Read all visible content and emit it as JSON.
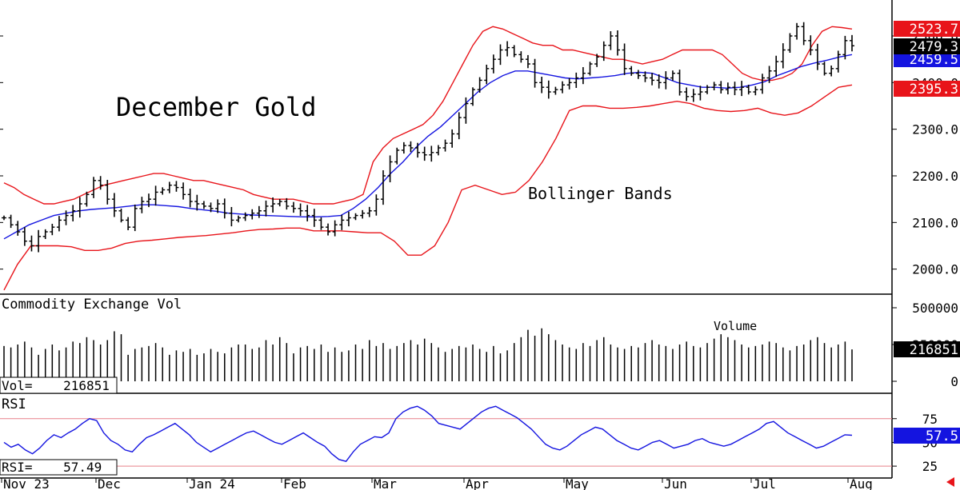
{
  "chart_data": {
    "type": "ohlc",
    "title": "December Gold",
    "annotation": "Bollinger Bands",
    "x_tick_labels": [
      "Nov 23",
      "Dec",
      "Jan 24",
      "Feb",
      "Mar",
      "Apr",
      "May",
      "Jun",
      "Jul",
      "Aug"
    ],
    "price_panel": {
      "y_ticks": [
        "2000.0",
        "2100.0",
        "2200.0",
        "2300.0",
        "2400.0",
        "2500.0"
      ],
      "ylim": [
        1960,
        2560
      ],
      "last_labels": {
        "upper_band": "2523.7",
        "close": "2479.3",
        "middle_band": "2459.5",
        "lower_band": "2395.3"
      },
      "colors": {
        "upper_band": "#e8141a",
        "lower_band": "#e8141a",
        "middle_band": "#1414e0",
        "close_label_bg": "#000000"
      },
      "close_series": [
        2110,
        2095,
        2080,
        2060,
        2050,
        2070,
        2080,
        2090,
        2105,
        2115,
        2125,
        2140,
        2160,
        2190,
        2180,
        2150,
        2125,
        2105,
        2090,
        2130,
        2145,
        2150,
        2165,
        2170,
        2180,
        2175,
        2160,
        2145,
        2140,
        2135,
        2130,
        2140,
        2120,
        2105,
        2110,
        2115,
        2120,
        2125,
        2135,
        2140,
        2145,
        2135,
        2130,
        2125,
        2115,
        2105,
        2090,
        2080,
        2095,
        2105,
        2110,
        2115,
        2120,
        2125,
        2150,
        2200,
        2230,
        2255,
        2265,
        2260,
        2250,
        2245,
        2250,
        2260,
        2270,
        2290,
        2325,
        2355,
        2385,
        2405,
        2430,
        2450,
        2470,
        2475,
        2460,
        2450,
        2440,
        2400,
        2390,
        2380,
        2385,
        2395,
        2400,
        2410,
        2420,
        2440,
        2455,
        2480,
        2500,
        2470,
        2430,
        2420,
        2415,
        2410,
        2405,
        2400,
        2410,
        2420,
        2380,
        2370,
        2375,
        2380,
        2390,
        2395,
        2385,
        2390,
        2385,
        2390,
        2380,
        2385,
        2410,
        2425,
        2445,
        2470,
        2500,
        2520,
        2490,
        2470,
        2440,
        2420,
        2430,
        2460,
        2490,
        2479
      ],
      "upper_band": [
        2185,
        2175,
        2160,
        2150,
        2140,
        2140,
        2145,
        2150,
        2160,
        2170,
        2180,
        2185,
        2190,
        2195,
        2200,
        2205,
        2205,
        2200,
        2195,
        2190,
        2190,
        2185,
        2180,
        2175,
        2170,
        2160,
        2155,
        2150,
        2150,
        2150,
        2145,
        2140,
        2140,
        2140,
        2145,
        2150,
        2160,
        2230,
        2260,
        2280,
        2290,
        2300,
        2310,
        2330,
        2360,
        2400,
        2440,
        2480,
        2510,
        2520,
        2515,
        2505,
        2495,
        2485,
        2480,
        2480,
        2470,
        2470,
        2465,
        2460,
        2455,
        2450,
        2450,
        2445,
        2440,
        2445,
        2450,
        2460,
        2470,
        2470,
        2470,
        2470,
        2460,
        2440,
        2420,
        2410,
        2405,
        2405,
        2410,
        2420,
        2440,
        2480,
        2510,
        2520,
        2518,
        2515
      ],
      "middle_band": [
        2065,
        2080,
        2095,
        2105,
        2115,
        2120,
        2125,
        2128,
        2130,
        2132,
        2135,
        2138,
        2138,
        2136,
        2134,
        2130,
        2127,
        2124,
        2120,
        2118,
        2116,
        2115,
        2114,
        2113,
        2112,
        2112,
        2113,
        2115,
        2130,
        2150,
        2175,
        2205,
        2230,
        2260,
        2285,
        2305,
        2330,
        2355,
        2380,
        2400,
        2415,
        2425,
        2425,
        2420,
        2415,
        2410,
        2408,
        2410,
        2412,
        2415,
        2420,
        2422,
        2420,
        2410,
        2400,
        2395,
        2390,
        2390,
        2388,
        2390,
        2395,
        2402,
        2415,
        2425,
        2435,
        2442,
        2448,
        2455,
        2460
      ],
      "lower_band": [
        1955,
        2010,
        2050,
        2050,
        2050,
        2048,
        2040,
        2040,
        2045,
        2055,
        2060,
        2062,
        2065,
        2068,
        2070,
        2072,
        2075,
        2078,
        2082,
        2085,
        2086,
        2088,
        2088,
        2082,
        2082,
        2082,
        2080,
        2078,
        2078,
        2060,
        2030,
        2030,
        2050,
        2100,
        2170,
        2180,
        2170,
        2160,
        2165,
        2190,
        2230,
        2280,
        2340,
        2350,
        2350,
        2345,
        2345,
        2347,
        2350,
        2355,
        2360,
        2355,
        2345,
        2340,
        2338,
        2340,
        2345,
        2335,
        2330,
        2335,
        2350,
        2370,
        2390,
        2395
      ]
    },
    "volume_panel": {
      "title": "Commodity Exchange Vol",
      "annotation": "Volume",
      "readout": "Vol=    216851",
      "last_label": "216851",
      "y_ticks": [
        "0",
        "250000",
        "500000"
      ],
      "ylim": [
        0,
        500000
      ],
      "values": [
        240000,
        230000,
        250000,
        270000,
        230000,
        180000,
        220000,
        250000,
        210000,
        230000,
        270000,
        260000,
        300000,
        280000,
        250000,
        280000,
        340000,
        320000,
        180000,
        220000,
        230000,
        240000,
        260000,
        230000,
        180000,
        210000,
        200000,
        220000,
        180000,
        190000,
        220000,
        200000,
        190000,
        230000,
        250000,
        250000,
        220000,
        230000,
        280000,
        250000,
        300000,
        260000,
        190000,
        230000,
        240000,
        220000,
        250000,
        200000,
        230000,
        200000,
        210000,
        250000,
        220000,
        280000,
        240000,
        260000,
        220000,
        240000,
        260000,
        280000,
        250000,
        290000,
        260000,
        230000,
        200000,
        220000,
        240000,
        230000,
        250000,
        220000,
        200000,
        240000,
        190000,
        210000,
        260000,
        300000,
        350000,
        310000,
        360000,
        320000,
        280000,
        250000,
        230000,
        220000,
        260000,
        240000,
        280000,
        300000,
        250000,
        230000,
        220000,
        240000,
        230000,
        260000,
        280000,
        250000,
        240000,
        220000,
        250000,
        270000,
        240000,
        230000,
        260000,
        290000,
        320000,
        300000,
        280000,
        250000,
        230000,
        240000,
        250000,
        270000,
        260000,
        230000,
        210000,
        240000,
        250000,
        280000,
        300000,
        260000,
        230000,
        250000,
        270000,
        216851
      ],
      "color": "#000000"
    },
    "rsi_panel": {
      "title": "RSI",
      "readout": "RSI=    57.49",
      "last_label": "57.5",
      "y_ticks": [
        "25",
        "50",
        "75"
      ],
      "ylim": [
        15,
        95
      ],
      "overbought": 75,
      "oversold": 25,
      "values": [
        50,
        45,
        48,
        42,
        38,
        44,
        52,
        58,
        55,
        60,
        64,
        70,
        75,
        73,
        60,
        52,
        48,
        42,
        40,
        48,
        55,
        58,
        62,
        66,
        70,
        64,
        58,
        50,
        45,
        40,
        44,
        48,
        52,
        56,
        60,
        62,
        58,
        54,
        50,
        48,
        52,
        56,
        60,
        55,
        50,
        46,
        38,
        32,
        30,
        40,
        48,
        52,
        56,
        55,
        60,
        75,
        82,
        86,
        88,
        84,
        78,
        70,
        68,
        66,
        64,
        70,
        76,
        82,
        86,
        88,
        84,
        80,
        76,
        70,
        64,
        56,
        48,
        44,
        42,
        46,
        52,
        58,
        62,
        66,
        64,
        58,
        52,
        48,
        44,
        42,
        46,
        50,
        52,
        48,
        44,
        46,
        48,
        52,
        54,
        50,
        48,
        46,
        48,
        52,
        56,
        60,
        64,
        70,
        72,
        66,
        60,
        56,
        52,
        48,
        44,
        46,
        50,
        54,
        58,
        57.5
      ],
      "line_color": "#1414e0",
      "level_color": "#e8808a"
    }
  }
}
